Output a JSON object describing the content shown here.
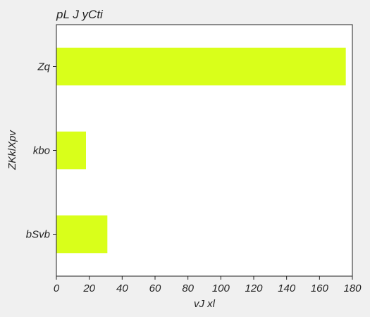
{
  "chart_data": {
    "type": "bar",
    "orientation": "horizontal",
    "title": "pL J yCti",
    "xlabel": "vJ xl",
    "ylabel": "ZKklXpv",
    "categories": [
      "Zq",
      "kbo",
      "bSvb"
    ],
    "values": [
      176,
      18,
      31
    ],
    "xlim": [
      0,
      180
    ],
    "xticks": [
      0,
      20,
      40,
      60,
      80,
      100,
      120,
      140,
      160,
      180
    ],
    "grid": false,
    "colors": {
      "bar": "#d9ff1a",
      "background": "#f0f0f0",
      "plot_background": "#ffffff",
      "axis": "#222222"
    }
  }
}
